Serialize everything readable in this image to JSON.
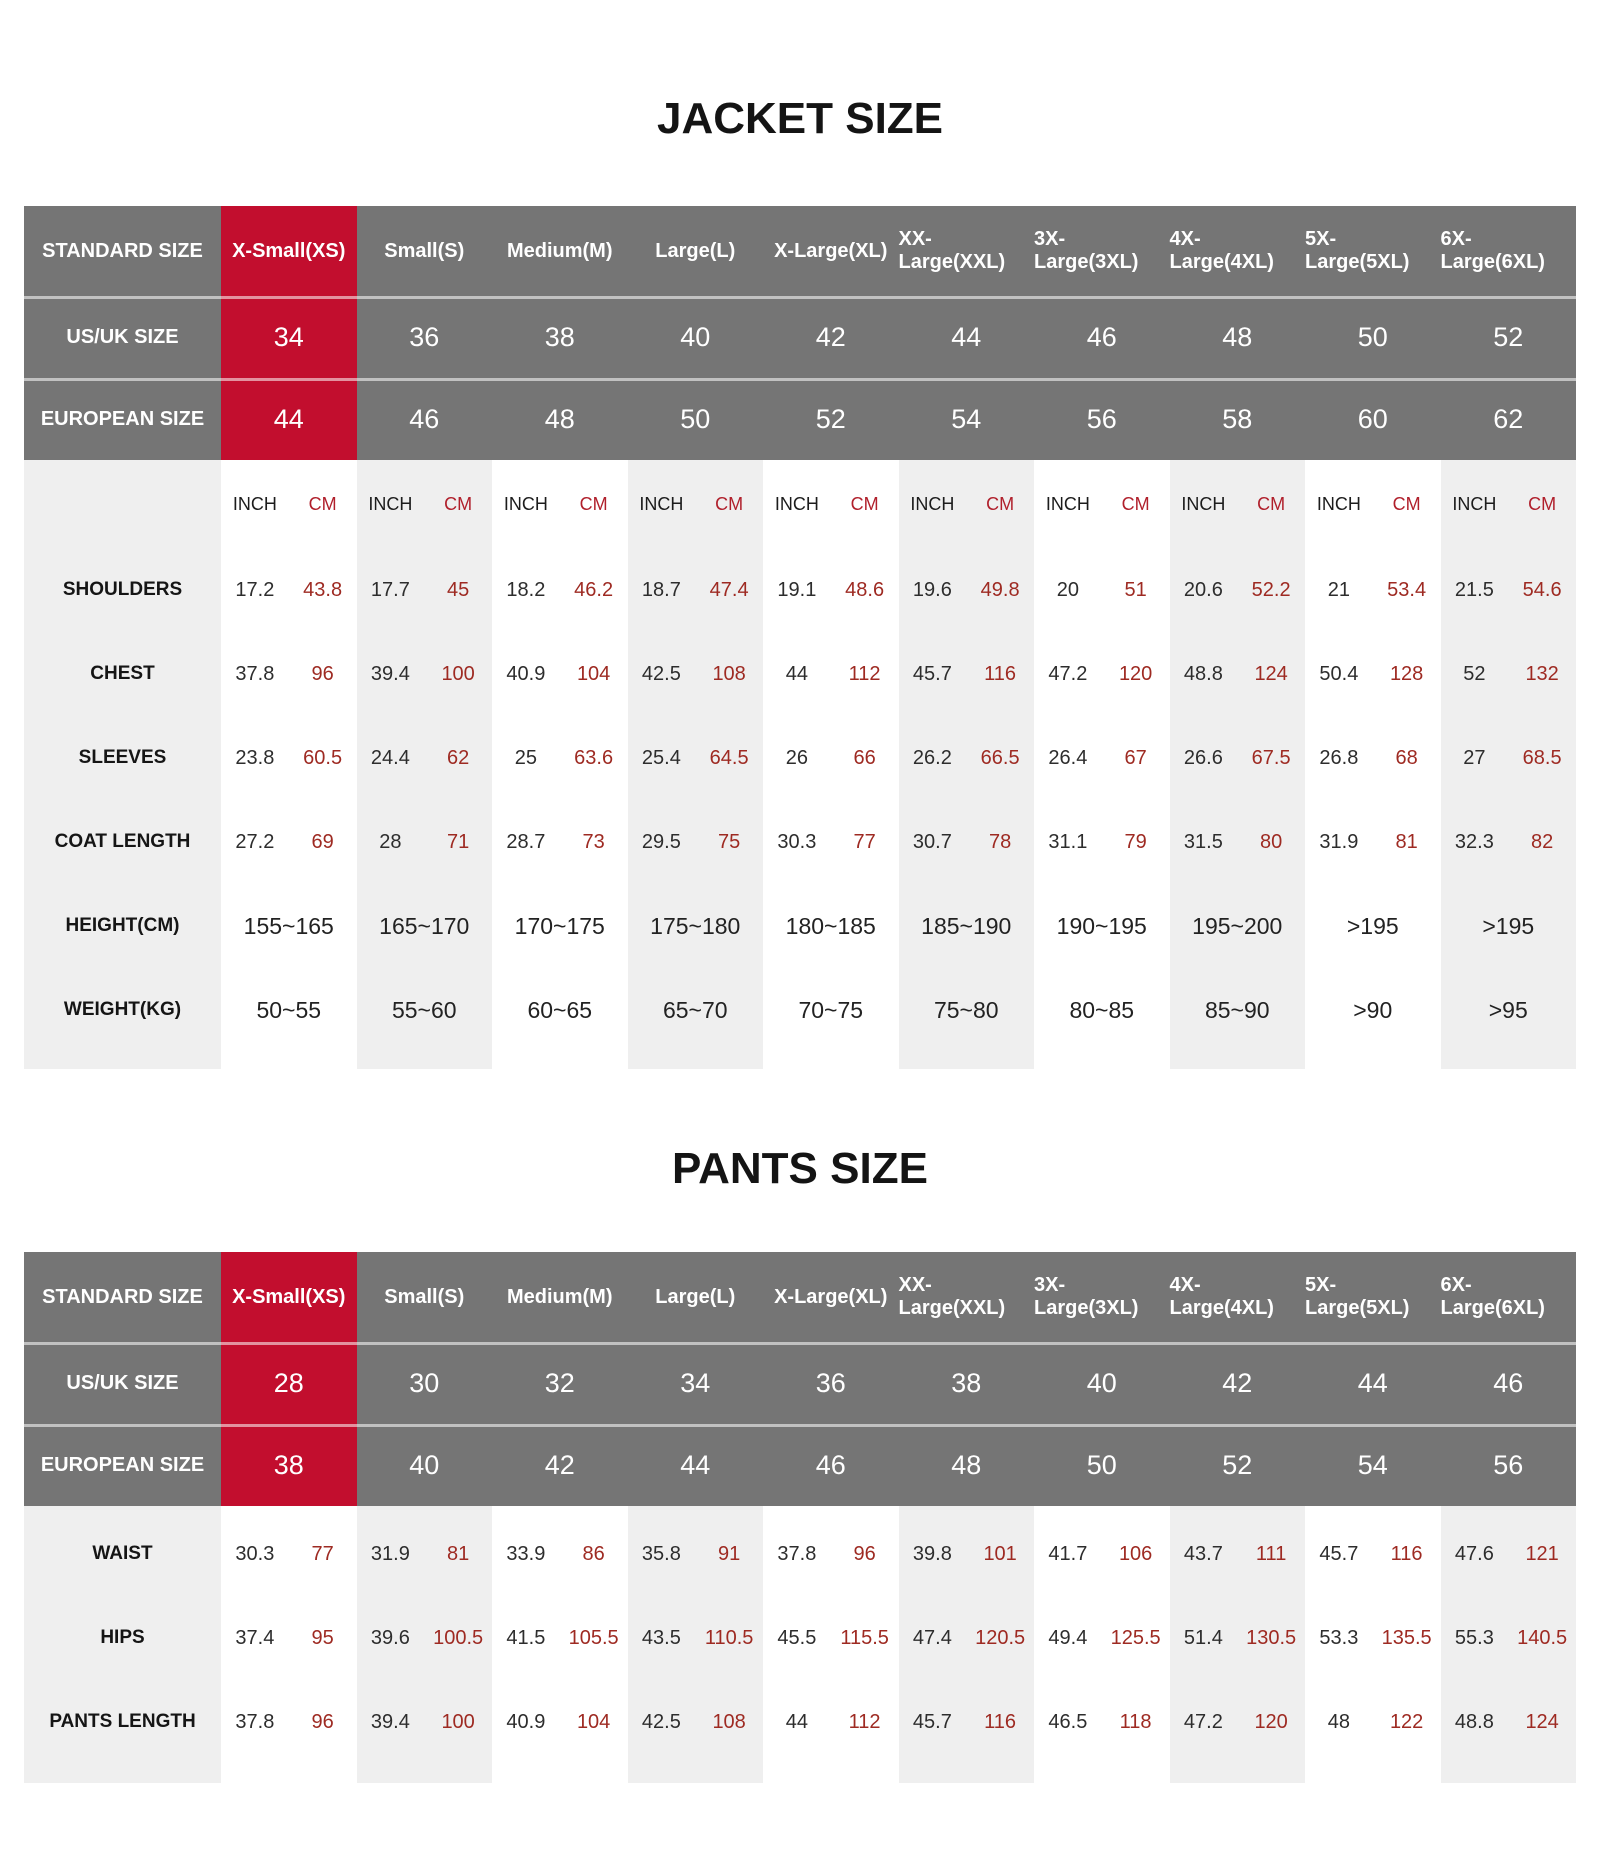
{
  "colors": {
    "header_gray": "#757575",
    "accent_red": "#c20e2e",
    "body_light_gray": "#efefef",
    "cm_text_red": "#9e2a22",
    "cm_label_red": "#b01f2b"
  },
  "jacket": {
    "title": "JACKET SIZE",
    "header_rows": [
      {
        "label": "STANDARD SIZE",
        "values": [
          "X-Small(XS)",
          "Small(S)",
          "Medium(M)",
          "Large(L)",
          "X-Large(XL)",
          "XX-Large(XXL)",
          "3X-Large(3XL)",
          "4X-Large(4XL)",
          "5X-Large(5XL)",
          "6X-Large(6XL)"
        ]
      },
      {
        "label": "US/UK SIZE",
        "values": [
          "34",
          "36",
          "38",
          "40",
          "42",
          "44",
          "46",
          "48",
          "50",
          "52"
        ]
      },
      {
        "label": "EUROPEAN SIZE",
        "values": [
          "44",
          "46",
          "48",
          "50",
          "52",
          "54",
          "56",
          "58",
          "60",
          "62"
        ]
      }
    ],
    "unit_labels": {
      "inch": "INCH",
      "cm": "CM"
    },
    "body_rows": [
      {
        "type": "units"
      },
      {
        "type": "pair",
        "label": "SHOULDERS",
        "inch": [
          "17.2",
          "17.7",
          "18.2",
          "18.7",
          "19.1",
          "19.6",
          "20",
          "20.6",
          "21",
          "21.5"
        ],
        "cm": [
          "43.8",
          "45",
          "46.2",
          "47.4",
          "48.6",
          "49.8",
          "51",
          "52.2",
          "53.4",
          "54.6"
        ]
      },
      {
        "type": "pair",
        "label": "CHEST",
        "inch": [
          "37.8",
          "39.4",
          "40.9",
          "42.5",
          "44",
          "45.7",
          "47.2",
          "48.8",
          "50.4",
          "52"
        ],
        "cm": [
          "96",
          "100",
          "104",
          "108",
          "112",
          "116",
          "120",
          "124",
          "128",
          "132"
        ]
      },
      {
        "type": "pair",
        "label": "SLEEVES",
        "inch": [
          "23.8",
          "24.4",
          "25",
          "25.4",
          "26",
          "26.2",
          "26.4",
          "26.6",
          "26.8",
          "27"
        ],
        "cm": [
          "60.5",
          "62",
          "63.6",
          "64.5",
          "66",
          "66.5",
          "67",
          "67.5",
          "68",
          "68.5"
        ]
      },
      {
        "type": "pair",
        "label": "COAT LENGTH",
        "inch": [
          "27.2",
          "28",
          "28.7",
          "29.5",
          "30.3",
          "30.7",
          "31.1",
          "31.5",
          "31.9",
          "32.3"
        ],
        "cm": [
          "69",
          "71",
          "73",
          "75",
          "77",
          "78",
          "79",
          "80",
          "81",
          "82"
        ]
      },
      {
        "type": "range",
        "label": "HEIGHT(CM)",
        "values": [
          "155~165",
          "165~170",
          "170~175",
          "175~180",
          "180~185",
          "185~190",
          "190~195",
          "195~200",
          ">195",
          ">195"
        ]
      },
      {
        "type": "range",
        "label": "WEIGHT(KG)",
        "values": [
          "50~55",
          "55~60",
          "60~65",
          "65~70",
          "70~75",
          "75~80",
          "80~85",
          "85~90",
          ">90",
          ">95"
        ]
      }
    ]
  },
  "pants": {
    "title": "PANTS SIZE",
    "header_rows": [
      {
        "label": "STANDARD SIZE",
        "values": [
          "X-Small(XS)",
          "Small(S)",
          "Medium(M)",
          "Large(L)",
          "X-Large(XL)",
          "XX-Large(XXL)",
          "3X-Large(3XL)",
          "4X-Large(4XL)",
          "5X-Large(5XL)",
          "6X-Large(6XL)"
        ]
      },
      {
        "label": "US/UK SIZE",
        "values": [
          "28",
          "30",
          "32",
          "34",
          "36",
          "38",
          "40",
          "42",
          "44",
          "46"
        ]
      },
      {
        "label": "EUROPEAN SIZE",
        "values": [
          "38",
          "40",
          "42",
          "44",
          "46",
          "48",
          "50",
          "52",
          "54",
          "56"
        ]
      }
    ],
    "unit_labels": {
      "inch": "INCH",
      "cm": "CM"
    },
    "body_rows": [
      {
        "type": "pair",
        "label": "WAIST",
        "inch": [
          "30.3",
          "31.9",
          "33.9",
          "35.8",
          "37.8",
          "39.8",
          "41.7",
          "43.7",
          "45.7",
          "47.6"
        ],
        "cm": [
          "77",
          "81",
          "86",
          "91",
          "96",
          "101",
          "106",
          "111",
          "116",
          "121"
        ]
      },
      {
        "type": "pair",
        "label": "HIPS",
        "inch": [
          "37.4",
          "39.6",
          "41.5",
          "43.5",
          "45.5",
          "47.4",
          "49.4",
          "51.4",
          "53.3",
          "55.3"
        ],
        "cm": [
          "95",
          "100.5",
          "105.5",
          "110.5",
          "115.5",
          "120.5",
          "125.5",
          "130.5",
          "135.5",
          "140.5"
        ]
      },
      {
        "type": "pair",
        "label": "PANTS LENGTH",
        "inch": [
          "37.8",
          "39.4",
          "40.9",
          "42.5",
          "44",
          "45.7",
          "46.5",
          "47.2",
          "48",
          "48.8"
        ],
        "cm": [
          "96",
          "100",
          "104",
          "108",
          "112",
          "116",
          "118",
          "120",
          "122",
          "124"
        ]
      }
    ]
  }
}
